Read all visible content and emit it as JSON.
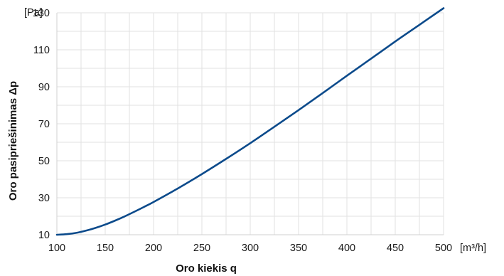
{
  "chart_data": {
    "type": "line",
    "xlabel": "Oro kiekis q",
    "ylabel": "Oro pasipriešinimas Δp",
    "x_unit": "[m³/h]",
    "y_unit": "[Pa]",
    "xlim": [
      100,
      500
    ],
    "ylim": [
      10,
      130
    ],
    "x_ticks": [
      100,
      150,
      200,
      250,
      300,
      350,
      400,
      450,
      500
    ],
    "y_ticks": [
      10,
      30,
      50,
      70,
      90,
      110,
      130
    ],
    "x_minor_step": 25,
    "y_minor_step": 10,
    "grid": true,
    "series": [
      {
        "color": "#0b4a8b",
        "x": [
          100,
          110,
          120,
          130,
          140,
          150,
          160,
          170,
          180,
          190,
          200,
          225,
          250,
          275,
          300,
          325,
          350,
          375,
          400,
          425,
          450,
          475,
          500
        ],
        "y": [
          10,
          10.3,
          11,
          12.2,
          13.7,
          15.5,
          17.6,
          19.9,
          22.4,
          25,
          27.7,
          35,
          42.8,
          51,
          59.5,
          68.4,
          77.4,
          86.6,
          96,
          105.2,
          114.5,
          123.5,
          132.5
        ]
      }
    ]
  }
}
